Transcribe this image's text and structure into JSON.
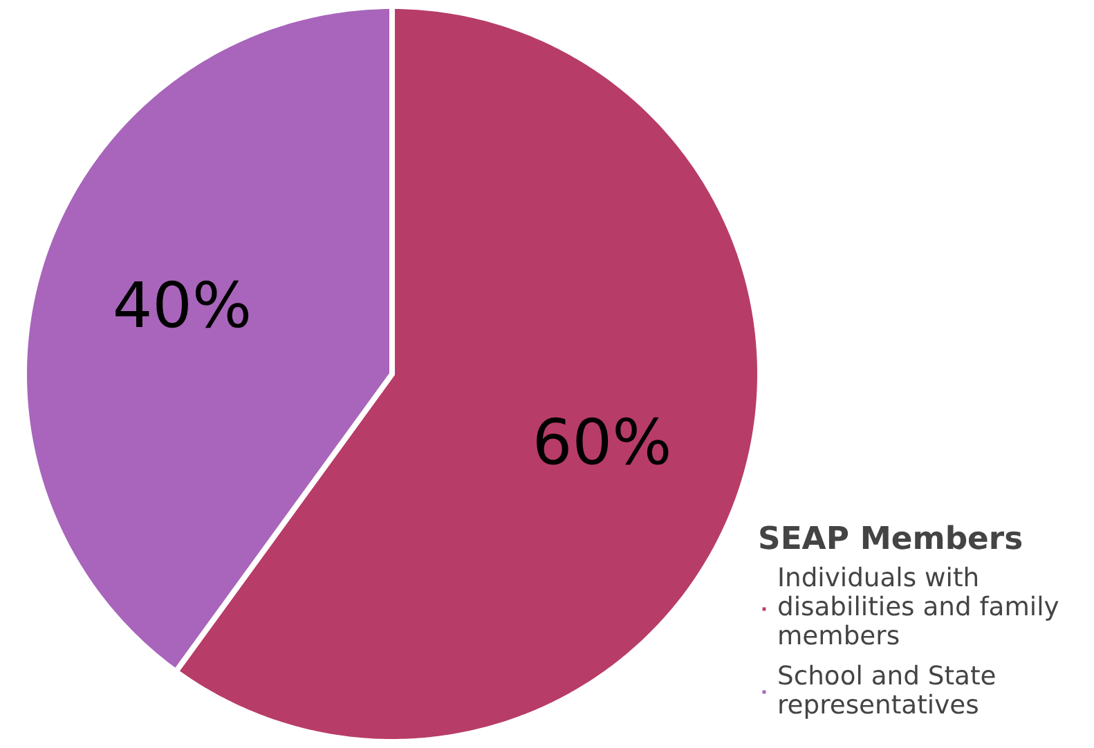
{
  "chart_data": {
    "type": "pie",
    "legend_title": "SEAP Members",
    "categories": [
      "Individuals with disabilities and family members",
      "School and State representatives"
    ],
    "values": [
      60,
      40
    ],
    "colors": [
      "#b83c68",
      "#a865bb"
    ],
    "value_labels": [
      "60%",
      "40%"
    ],
    "legend": "right"
  }
}
